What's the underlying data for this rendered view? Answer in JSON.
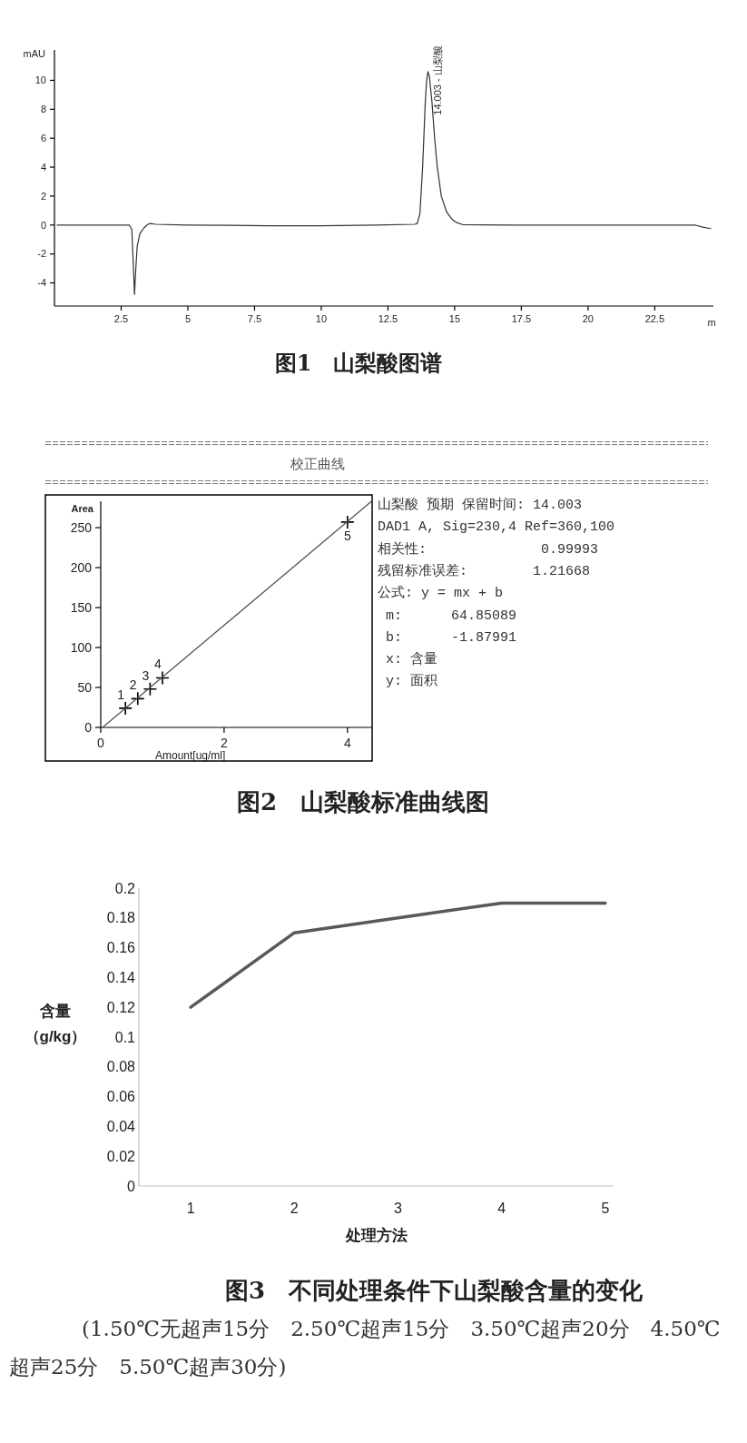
{
  "chart_data": [
    {
      "type": "line",
      "title": "图1　山梨酸图谱",
      "xlabel": "m",
      "ylabel": "mAU",
      "color": "#333333",
      "xlim": [
        0,
        24.7
      ],
      "ylim": [
        -5.6,
        12.1
      ],
      "xticks": [
        2.5,
        5,
        7.5,
        10,
        12.5,
        15,
        17.5,
        20,
        22.5
      ],
      "yticks": [
        -4,
        -2,
        0,
        2,
        4,
        6,
        8,
        10
      ],
      "x": [
        0.1,
        2.8,
        2.9,
        2.95,
        3.0,
        3.05,
        3.1,
        3.2,
        3.35,
        3.5,
        3.6,
        3.8,
        5,
        8,
        10,
        12,
        13.5,
        13.6,
        13.7,
        13.8,
        13.9,
        13.95,
        14.0,
        14.05,
        14.15,
        14.25,
        14.35,
        14.5,
        14.7,
        14.9,
        15.1,
        15.3,
        17,
        20,
        22,
        24.0,
        24.3,
        24.6
      ],
      "values": [
        0,
        0,
        -0.3,
        -2.5,
        -4.8,
        -3,
        -1.5,
        -0.6,
        -0.2,
        0.05,
        0.1,
        0.05,
        0,
        -0.05,
        -0.05,
        0,
        0.05,
        0.1,
        0.8,
        4,
        8.5,
        10,
        10.6,
        10.3,
        8.5,
        6,
        4,
        2,
        0.9,
        0.4,
        0.15,
        0.03,
        0,
        0,
        0,
        0,
        -0.15,
        -0.25
      ],
      "annotations": [
        {
          "text": "14.003 - 山梨酸",
          "x": 14.003,
          "y": 10
        }
      ]
    },
    {
      "type": "scatter",
      "title": "图2　山梨酸标准曲线图",
      "subtitle": "校正曲线",
      "xlabel": "Amount[ug/ml]",
      "ylabel": "Area",
      "xlim": [
        0,
        4.4
      ],
      "ylim": [
        0,
        283
      ],
      "xticks": [
        0,
        2,
        4
      ],
      "yticks": [
        0,
        50,
        100,
        150,
        200,
        250
      ],
      "series": [
        {
          "marker": "cross",
          "color": "#000000",
          "x": [
            0.4,
            0.6,
            0.8,
            1.0,
            4.0
          ],
          "values": [
            24,
            36,
            48,
            62,
            257
          ]
        },
        {
          "type": "line",
          "color": "#555555",
          "x": [
            0.03,
            4.39
          ],
          "values": [
            0,
            283
          ]
        }
      ],
      "annotations": [
        {
          "text": "1",
          "x": 0.4,
          "y": 24
        },
        {
          "text": "2",
          "x": 0.6,
          "y": 36
        },
        {
          "text": "3",
          "x": 0.8,
          "y": 48
        },
        {
          "text": "4",
          "x": 1.0,
          "y": 62
        },
        {
          "text": "5",
          "x": 4.0,
          "y": 257
        },
        "山梨酸 预期 保留时间: 14.003",
        "DAD1 A, Sig=230,4 Ref=360,100",
        "相关性:              0.99993",
        "残留标准误差:        1.21668",
        "公式: y = mx + b",
        " m:      64.85089",
        " b:      -1.87991",
        " x: 含量",
        " y: 面积"
      ]
    },
    {
      "type": "line",
      "title": "图3　不同处理条件下山梨酸含量的变化",
      "xlabel": "处理方法",
      "ylabel": "含量（g/kg）",
      "color": "#595959",
      "categories": [
        "1",
        "2",
        "3",
        "4",
        "5"
      ],
      "values": [
        0.12,
        0.17,
        0.18,
        0.19,
        0.19
      ],
      "ylim": [
        0,
        0.2
      ],
      "yticks": [
        0,
        0.02,
        0.04,
        0.06,
        0.08,
        0.1,
        0.12,
        0.14,
        0.16,
        0.18,
        0.2
      ],
      "annotations": [
        "(1.50℃无超声15分　2.50℃超声15分　3.50℃超声20分　4.50℃超声25分　5.50℃超声30分)"
      ]
    }
  ]
}
